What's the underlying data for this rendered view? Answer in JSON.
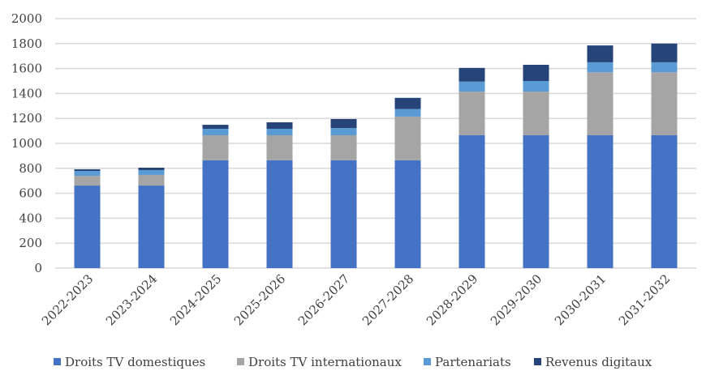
{
  "chart_data": {
    "type": "bar",
    "stacked": true,
    "title": "",
    "xlabel": "",
    "ylabel": "",
    "ylim": [
      0,
      2000
    ],
    "yticks": [
      0,
      200,
      400,
      600,
      800,
      1000,
      1200,
      1400,
      1600,
      1800,
      2000
    ],
    "grid": true,
    "legend_position": "bottom",
    "categories": [
      "2022-2023",
      "2023-2024",
      "2024-2025",
      "2025-2026",
      "2026-2027",
      "2027-2028",
      "2028-2029",
      "2029-2030",
      "2030-2031",
      "2031-2032"
    ],
    "series": [
      {
        "name": "Droits TV domestiques",
        "color": "#4472C4",
        "values": [
          662,
          662,
          865,
          865,
          865,
          865,
          1065,
          1065,
          1065,
          1065
        ]
      },
      {
        "name": "Droits TV internationaux",
        "color": "#A5A5A5",
        "values": [
          78,
          85,
          200,
          200,
          200,
          350,
          350,
          350,
          505,
          505
        ]
      },
      {
        "name": "Partenariats",
        "color": "#5B9BD5",
        "values": [
          39,
          39,
          52,
          52,
          58,
          60,
          80,
          85,
          80,
          80
        ]
      },
      {
        "name": "Revenus digitaux",
        "color": "#264478",
        "values": [
          13,
          19,
          32,
          52,
          72,
          90,
          110,
          130,
          135,
          150
        ]
      }
    ]
  }
}
